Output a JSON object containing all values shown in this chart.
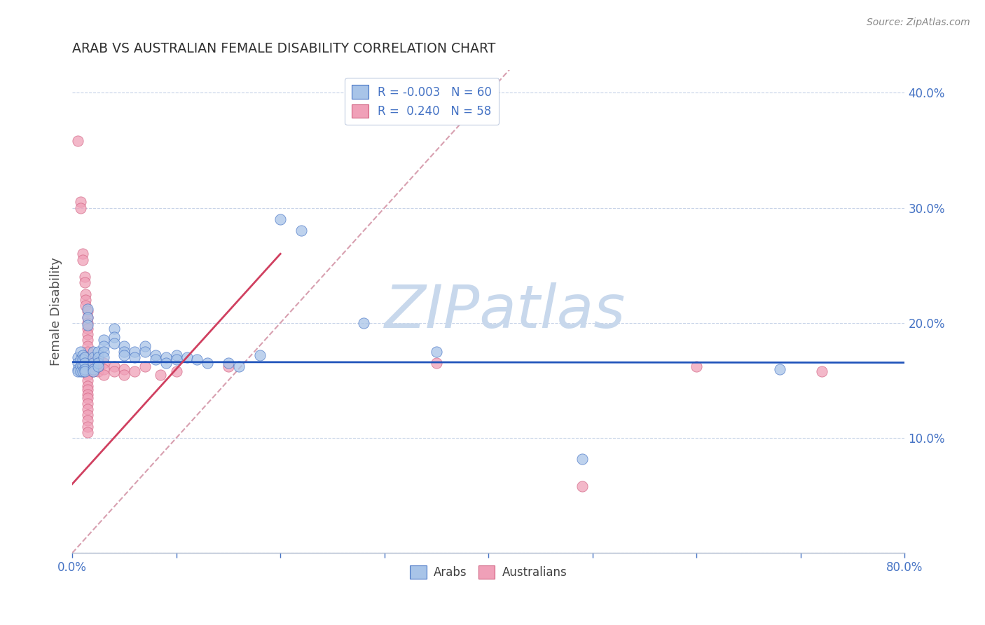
{
  "title": "ARAB VS AUSTRALIAN FEMALE DISABILITY CORRELATION CHART",
  "source": "Source: ZipAtlas.com",
  "ylabel": "Female Disability",
  "xlim": [
    0.0,
    0.8
  ],
  "ylim": [
    0.0,
    0.42
  ],
  "xticks": [
    0.0,
    0.1,
    0.2,
    0.3,
    0.4,
    0.5,
    0.6,
    0.7,
    0.8
  ],
  "yticks": [
    0.0,
    0.1,
    0.2,
    0.3,
    0.4
  ],
  "arab_color": "#a8c4e8",
  "australian_color": "#f0a0b8",
  "arab_edge_color": "#4472c4",
  "australian_edge_color": "#d06080",
  "arab_line_color": "#2255bb",
  "australian_line_color": "#d04060",
  "diagonal_color": "#d8a0b0",
  "title_color": "#303030",
  "axis_label_color": "#505050",
  "tick_color": "#4472c4",
  "watermark_color": "#c8d8ec",
  "arab_scatter": [
    [
      0.005,
      0.17
    ],
    [
      0.005,
      0.165
    ],
    [
      0.005,
      0.16
    ],
    [
      0.005,
      0.158
    ],
    [
      0.008,
      0.175
    ],
    [
      0.008,
      0.168
    ],
    [
      0.008,
      0.162
    ],
    [
      0.008,
      0.158
    ],
    [
      0.01,
      0.172
    ],
    [
      0.01,
      0.168
    ],
    [
      0.01,
      0.163
    ],
    [
      0.01,
      0.158
    ],
    [
      0.012,
      0.17
    ],
    [
      0.012,
      0.165
    ],
    [
      0.012,
      0.16
    ],
    [
      0.012,
      0.158
    ],
    [
      0.015,
      0.212
    ],
    [
      0.015,
      0.205
    ],
    [
      0.015,
      0.198
    ],
    [
      0.02,
      0.175
    ],
    [
      0.02,
      0.17
    ],
    [
      0.02,
      0.165
    ],
    [
      0.02,
      0.16
    ],
    [
      0.02,
      0.158
    ],
    [
      0.025,
      0.175
    ],
    [
      0.025,
      0.17
    ],
    [
      0.025,
      0.165
    ],
    [
      0.025,
      0.162
    ],
    [
      0.03,
      0.185
    ],
    [
      0.03,
      0.18
    ],
    [
      0.03,
      0.175
    ],
    [
      0.03,
      0.17
    ],
    [
      0.04,
      0.195
    ],
    [
      0.04,
      0.188
    ],
    [
      0.04,
      0.182
    ],
    [
      0.05,
      0.18
    ],
    [
      0.05,
      0.175
    ],
    [
      0.05,
      0.172
    ],
    [
      0.06,
      0.175
    ],
    [
      0.06,
      0.17
    ],
    [
      0.07,
      0.18
    ],
    [
      0.07,
      0.175
    ],
    [
      0.08,
      0.172
    ],
    [
      0.08,
      0.168
    ],
    [
      0.09,
      0.17
    ],
    [
      0.09,
      0.165
    ],
    [
      0.1,
      0.172
    ],
    [
      0.1,
      0.168
    ],
    [
      0.11,
      0.17
    ],
    [
      0.12,
      0.168
    ],
    [
      0.13,
      0.165
    ],
    [
      0.15,
      0.165
    ],
    [
      0.16,
      0.162
    ],
    [
      0.18,
      0.172
    ],
    [
      0.2,
      0.29
    ],
    [
      0.22,
      0.28
    ],
    [
      0.28,
      0.2
    ],
    [
      0.35,
      0.175
    ],
    [
      0.49,
      0.082
    ],
    [
      0.68,
      0.16
    ]
  ],
  "australian_scatter": [
    [
      0.005,
      0.358
    ],
    [
      0.008,
      0.305
    ],
    [
      0.008,
      0.3
    ],
    [
      0.01,
      0.26
    ],
    [
      0.01,
      0.255
    ],
    [
      0.012,
      0.24
    ],
    [
      0.012,
      0.235
    ],
    [
      0.013,
      0.225
    ],
    [
      0.013,
      0.22
    ],
    [
      0.013,
      0.215
    ],
    [
      0.015,
      0.21
    ],
    [
      0.015,
      0.205
    ],
    [
      0.015,
      0.2
    ],
    [
      0.015,
      0.195
    ],
    [
      0.015,
      0.19
    ],
    [
      0.015,
      0.185
    ],
    [
      0.015,
      0.18
    ],
    [
      0.015,
      0.175
    ],
    [
      0.015,
      0.17
    ],
    [
      0.015,
      0.165
    ],
    [
      0.015,
      0.162
    ],
    [
      0.015,
      0.158
    ],
    [
      0.015,
      0.155
    ],
    [
      0.015,
      0.15
    ],
    [
      0.015,
      0.145
    ],
    [
      0.015,
      0.142
    ],
    [
      0.015,
      0.138
    ],
    [
      0.015,
      0.135
    ],
    [
      0.015,
      0.13
    ],
    [
      0.015,
      0.125
    ],
    [
      0.015,
      0.12
    ],
    [
      0.015,
      0.115
    ],
    [
      0.015,
      0.11
    ],
    [
      0.015,
      0.105
    ],
    [
      0.018,
      0.165
    ],
    [
      0.018,
      0.16
    ],
    [
      0.02,
      0.168
    ],
    [
      0.02,
      0.162
    ],
    [
      0.02,
      0.158
    ],
    [
      0.025,
      0.162
    ],
    [
      0.025,
      0.158
    ],
    [
      0.03,
      0.165
    ],
    [
      0.03,
      0.16
    ],
    [
      0.03,
      0.155
    ],
    [
      0.04,
      0.162
    ],
    [
      0.04,
      0.158
    ],
    [
      0.05,
      0.16
    ],
    [
      0.05,
      0.155
    ],
    [
      0.06,
      0.158
    ],
    [
      0.07,
      0.162
    ],
    [
      0.085,
      0.155
    ],
    [
      0.1,
      0.158
    ],
    [
      0.15,
      0.162
    ],
    [
      0.35,
      0.165
    ],
    [
      0.49,
      0.058
    ],
    [
      0.6,
      0.162
    ],
    [
      0.72,
      0.158
    ]
  ],
  "arab_line": {
    "x0": 0.0,
    "y0": 0.166,
    "x1": 0.8,
    "y1": 0.1655
  },
  "aus_line": {
    "x0": 0.0,
    "y0": 0.06,
    "x1": 0.2,
    "y1": 0.26
  },
  "diag_line": {
    "x0": 0.0,
    "y0": 0.0,
    "x1": 0.42,
    "y1": 0.42
  }
}
